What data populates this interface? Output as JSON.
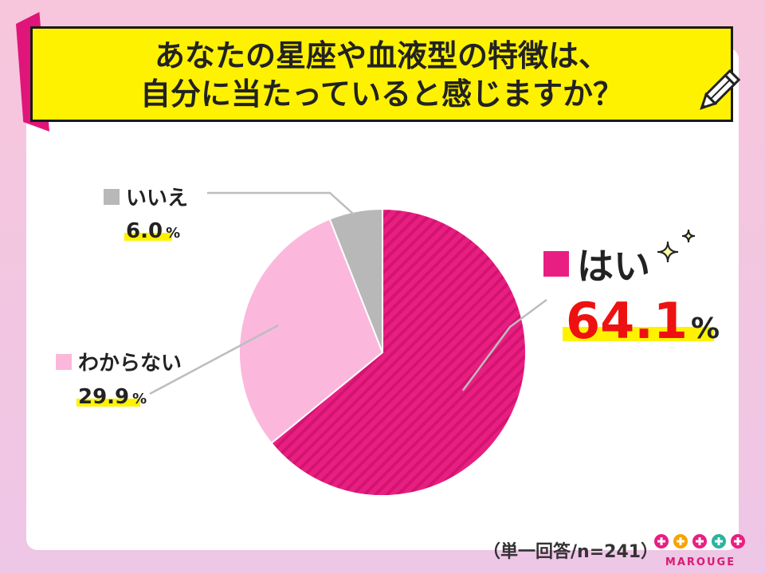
{
  "title": {
    "line1": "あなたの星座や血液型の特徴は、",
    "line2": "自分に当たっていると感じますか？"
  },
  "chart_data": {
    "type": "pie",
    "slices": [
      {
        "label": "はい",
        "value": 64.1,
        "display": "64.1",
        "unit": "%",
        "color": "#e91e82",
        "pattern": "striped"
      },
      {
        "label": "わからない",
        "value": 29.9,
        "display": "29.9",
        "unit": "%",
        "color": "#fbb8dc"
      },
      {
        "label": "いいえ",
        "value": 6.0,
        "display": "6.0",
        "unit": "%",
        "color": "#b8b8b8"
      }
    ],
    "start": "12 o'clock",
    "direction": "clockwise"
  },
  "footer": {
    "sample_note": "（単一回答/n=241）",
    "logo_text": "MAROUGE"
  },
  "colors": {
    "background": "#f7c6dc",
    "title_bg": "#fff200",
    "accent": "#e91e82",
    "highlight": "#fff200",
    "value_red": "#ee1111"
  }
}
